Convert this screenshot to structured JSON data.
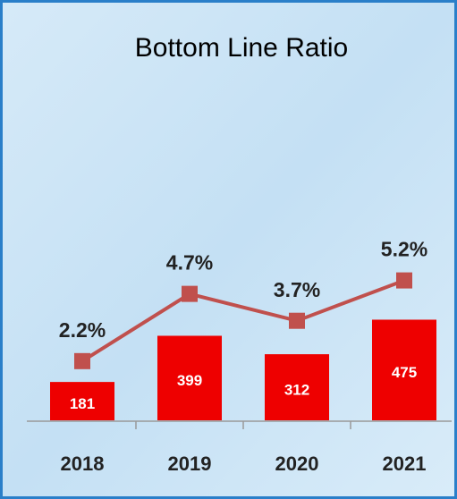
{
  "chart_data": {
    "type": "bar",
    "title": "Bottom Line Ratio",
    "categories": [
      "2018",
      "2019",
      "2020",
      "2021"
    ],
    "series": [
      {
        "type": "bar",
        "color": "#ee0000",
        "values": [
          181,
          399,
          312,
          475
        ]
      },
      {
        "type": "line",
        "axis": "y2",
        "color": "#c0504d",
        "values": [
          2.2,
          4.7,
          3.7,
          5.2
        ],
        "value_labels": [
          "2.2%",
          "4.7%",
          "3.7%",
          "5.2%"
        ]
      }
    ],
    "ylim": [
      0,
      1600
    ],
    "y2lim": [
      0,
      12.6
    ],
    "grid": false
  }
}
